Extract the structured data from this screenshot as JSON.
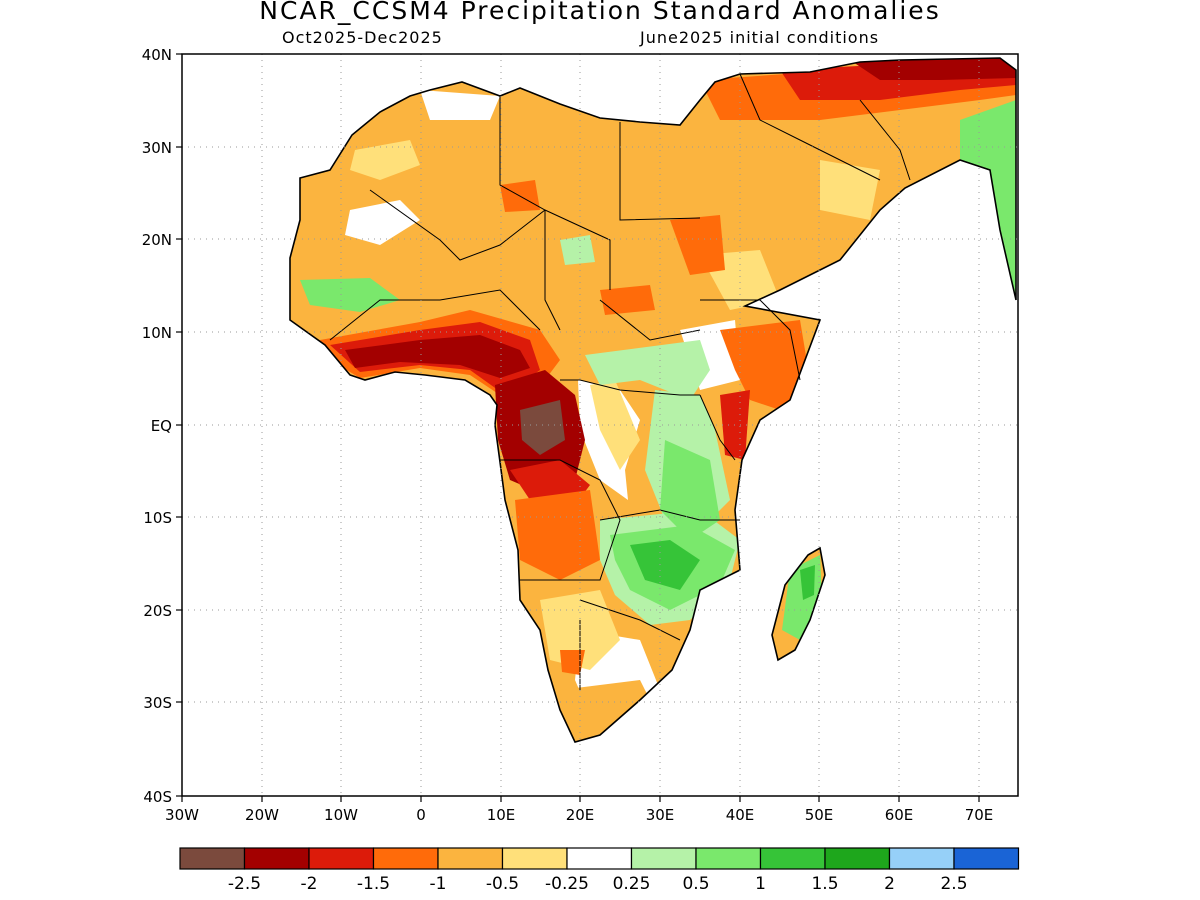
{
  "title": "NCAR_CCSM4 Precipitation Standard Anomalies",
  "period": "Oct2025-Dec2025",
  "initial_conditions": "June2025 initial conditions",
  "map": {
    "lat_labels": [
      "40N",
      "30N",
      "20N",
      "10N",
      "EQ",
      "10S",
      "20S",
      "30S",
      "40S"
    ],
    "lon_labels": [
      "30W",
      "20W",
      "10W",
      "0",
      "10E",
      "20E",
      "30E",
      "40E",
      "50E",
      "60E",
      "70E"
    ],
    "lon_range": [
      -30,
      75
    ],
    "lat_range": [
      -40,
      40
    ],
    "grid": "dotted"
  },
  "colorbar": {
    "colors": [
      "#7b4a3d",
      "#a30000",
      "#dc1b0a",
      "#ff6b0a",
      "#fbb43f",
      "#ffe07a",
      "#ffffff",
      "#b5f2a8",
      "#7ae86c",
      "#36c438",
      "#1ea71c",
      "#96d0f8",
      "#1a64d6"
    ],
    "labels": [
      "-2.5",
      "-2",
      "-1.5",
      "-1",
      "-0.5",
      "-0.25",
      "0.25",
      "0.5",
      "1",
      "1.5",
      "2",
      "2.5"
    ]
  }
}
